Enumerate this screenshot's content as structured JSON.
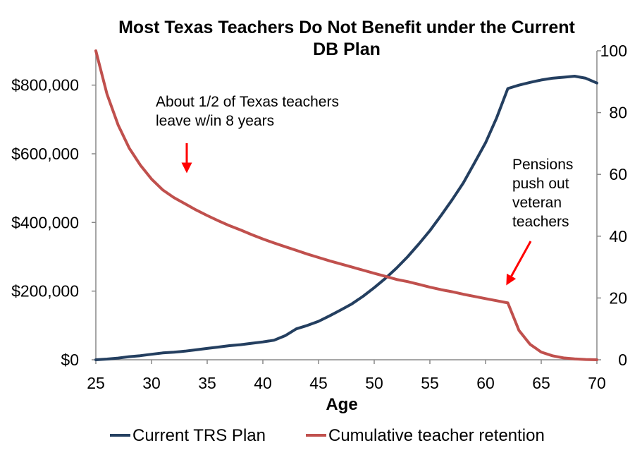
{
  "chart_data": {
    "type": "line",
    "title_lines": [
      "Most Texas Teachers Do Not Benefit under the Current",
      "DB Plan"
    ],
    "xlabel": "Age",
    "xlim": [
      25,
      70
    ],
    "x_ticks": [
      "25",
      "30",
      "35",
      "40",
      "45",
      "50",
      "55",
      "60",
      "65",
      "70"
    ],
    "y_left": {
      "lim": [
        0,
        900000
      ],
      "ticks": [
        "$0",
        "$200,000",
        "$400,000",
        "$600,000",
        "$800,000"
      ],
      "tick_values": [
        0,
        200000,
        400000,
        600000,
        800000
      ]
    },
    "y_right": {
      "lim": [
        0,
        100
      ],
      "ticks": [
        "0",
        "20",
        "40",
        "60",
        "80",
        "100"
      ],
      "tick_values": [
        0,
        20,
        40,
        60,
        80,
        100
      ]
    },
    "grid": false,
    "legend_position": "bottom",
    "series": [
      {
        "name": "Current TRS Plan",
        "axis": "left",
        "color": "#243F60",
        "x": [
          25,
          26,
          27,
          28,
          29,
          30,
          31,
          32,
          33,
          34,
          35,
          36,
          37,
          38,
          39,
          40,
          41,
          42,
          43,
          44,
          45,
          46,
          47,
          48,
          49,
          50,
          51,
          52,
          53,
          54,
          55,
          56,
          57,
          58,
          59,
          60,
          61,
          62,
          63,
          64,
          65,
          66,
          67,
          68,
          69,
          70
        ],
        "values": [
          0,
          2000,
          5000,
          9000,
          12000,
          16000,
          20000,
          22000,
          25000,
          29000,
          33000,
          37000,
          41000,
          44000,
          48000,
          52000,
          57000,
          70000,
          90000,
          100000,
          112000,
          128000,
          145000,
          163000,
          185000,
          210000,
          237000,
          267000,
          300000,
          337000,
          376000,
          420000,
          466000,
          515000,
          573000,
          632000,
          705000,
          790000,
          800000,
          808000,
          815000,
          820000,
          823000,
          826000,
          820000,
          806000
        ]
      },
      {
        "name": "Cumulative teacher retention",
        "axis": "right",
        "color": "#C0504D",
        "x": [
          25,
          26,
          27,
          28,
          29,
          30,
          31,
          32,
          33,
          34,
          35,
          36,
          37,
          38,
          39,
          40,
          41,
          42,
          43,
          44,
          45,
          46,
          47,
          48,
          49,
          50,
          51,
          52,
          53,
          54,
          55,
          56,
          57,
          58,
          59,
          60,
          61,
          62,
          63,
          64,
          65,
          66,
          67,
          68,
          69,
          70
        ],
        "values": [
          100,
          86,
          76,
          68.5,
          63,
          58.5,
          55,
          52.5,
          50.5,
          48.5,
          46.7,
          45,
          43.4,
          42,
          40.5,
          39.1,
          37.8,
          36.6,
          35.4,
          34.2,
          33.1,
          32,
          31,
          30,
          29,
          28,
          27,
          26,
          25.3,
          24.4,
          23.5,
          22.7,
          22,
          21.2,
          20.5,
          19.8,
          19.1,
          18.4,
          9.5,
          5,
          2.5,
          1.3,
          0.6,
          0.3,
          0.1,
          0
        ]
      }
    ],
    "annotations": [
      {
        "id": "retention",
        "lines": [
          "About 1/2 of Texas teachers",
          "leave w/in 8 years"
        ]
      },
      {
        "id": "pensions",
        "lines": [
          "Pensions",
          "push out",
          "veteran",
          "teachers"
        ]
      }
    ]
  }
}
